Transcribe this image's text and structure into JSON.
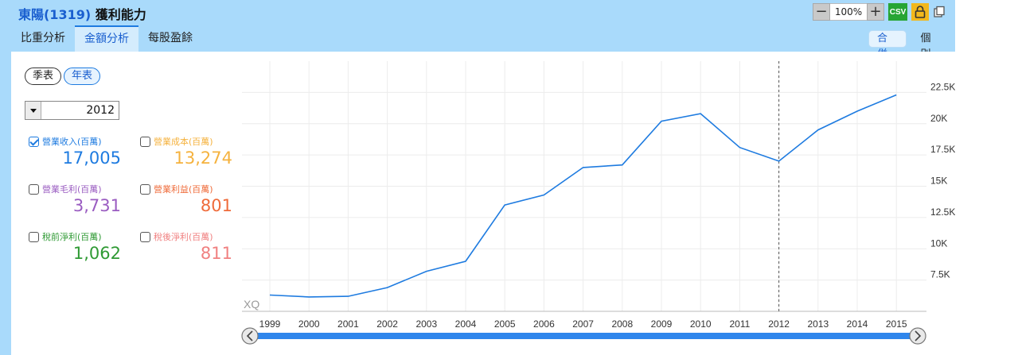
{
  "header": {
    "company": "東陽(1319)",
    "title": "獲利能力",
    "zoom": "100%",
    "csv_label": "CSV",
    "zoom_out_label": "−",
    "zoom_in_label": "+"
  },
  "tabs": [
    {
      "label": "比重分析",
      "active": false
    },
    {
      "label": "金額分析",
      "active": true
    },
    {
      "label": "每股盈餘",
      "active": false
    }
  ],
  "view_mode": [
    {
      "label": "合併",
      "active": true
    },
    {
      "label": "個別",
      "active": false
    }
  ],
  "period": [
    {
      "label": "季表",
      "active": false
    },
    {
      "label": "年表",
      "active": true
    }
  ],
  "year_select": {
    "value": "2012"
  },
  "metrics": [
    {
      "label": "營業收入(百萬)",
      "value": "17,005",
      "checked": true,
      "color": "#1e7be0"
    },
    {
      "label": "營業成本(百萬)",
      "value": "13,274",
      "checked": false,
      "color": "#f5b23e"
    },
    {
      "label": "營業毛利(百萬)",
      "value": "3,731",
      "checked": false,
      "color": "#9a5cc1"
    },
    {
      "label": "營業利益(百萬)",
      "value": "801",
      "checked": false,
      "color": "#ef6b3a"
    },
    {
      "label": "稅前淨利(百萬)",
      "value": "1,062",
      "checked": false,
      "color": "#2f9a34"
    },
    {
      "label": "稅後淨利(百萬)",
      "value": "811",
      "checked": false,
      "color": "#f08080"
    }
  ],
  "chart_data": {
    "type": "line",
    "watermark": "XQ",
    "x": [
      "1999",
      "2000",
      "2001",
      "2002",
      "2003",
      "2004",
      "2005",
      "2006",
      "2007",
      "2008",
      "2009",
      "2010",
      "2011",
      "2012",
      "2013",
      "2014",
      "2015"
    ],
    "series": [
      {
        "values": [
          6300,
          6150,
          6200,
          6900,
          8200,
          9000,
          13500,
          14300,
          16500,
          16700,
          20200,
          20800,
          18100,
          17005,
          19500,
          21000,
          22300
        ],
        "color": "#1e7be0"
      }
    ],
    "yticks": [
      7500,
      10000,
      12500,
      15000,
      17500,
      20000,
      22500
    ],
    "ytick_labels": [
      "7.5K",
      "10K",
      "12.5K",
      "15K",
      "17.5K",
      "20K",
      "22.5K"
    ],
    "ylim": [
      5000,
      25000
    ],
    "y_axis_position": "right",
    "grid": true,
    "marker_year": "2012"
  }
}
